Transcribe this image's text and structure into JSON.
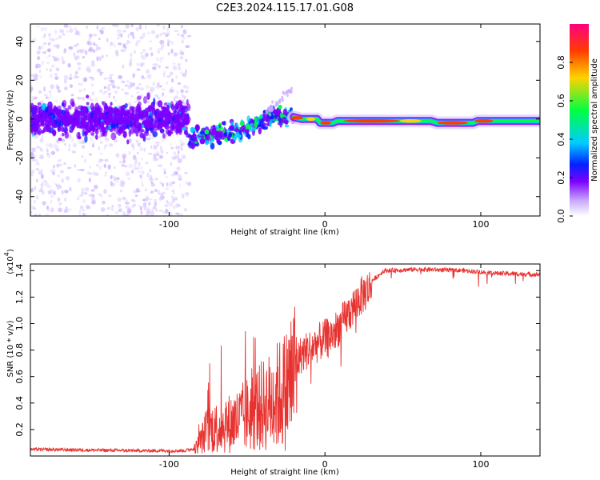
{
  "figure_title": "C2E3.2024.115.17.01.G08",
  "chart_data": [
    {
      "type": "heatmap",
      "name": "spectrogram",
      "title": "",
      "xlabel": "Height of straight line (km)",
      "ylabel": "Frequency (Hz)",
      "xlim": [
        -189,
        138
      ],
      "ylim": [
        -50,
        49
      ],
      "x_ticks": [
        -100,
        0,
        100
      ],
      "y_ticks": [
        -40,
        -20,
        0,
        20,
        40
      ],
      "colorbar": {
        "label": "Normalized spectral amplitude",
        "range": [
          0,
          1
        ],
        "ticks": [
          0.0,
          0.2,
          0.4,
          0.6,
          0.8
        ],
        "colormap": [
          "#ffffff",
          "#c9a8ff",
          "#7c00ff",
          "#0022ff",
          "#00ccff",
          "#00ff40",
          "#ffd200",
          "#ff3c00",
          "#ff0080"
        ]
      },
      "features": {
        "scatter_region_km": [
          -189,
          -87
        ],
        "scatter_center_hz": 0,
        "scatter_spread_hz": 10,
        "noise_extent_hz": [
          -50,
          49
        ],
        "descending_trace": [
          {
            "x": -87,
            "y": -10
          },
          {
            "x": -70,
            "y": -8
          },
          {
            "x": -55,
            "y": -6
          },
          {
            "x": -45,
            "y": -3
          },
          {
            "x": -35,
            "y": 2
          },
          {
            "x": -25,
            "y": 1
          },
          {
            "x": -20,
            "y": 1
          }
        ],
        "carrier_line": [
          {
            "x": -20,
            "y": 1
          },
          {
            "x": -15,
            "y": 0
          },
          {
            "x": -5,
            "y": 0
          },
          {
            "x": -3,
            "y": -2
          },
          {
            "x": 5,
            "y": -2
          },
          {
            "x": 8,
            "y": -1
          },
          {
            "x": 50,
            "y": -1
          },
          {
            "x": 68,
            "y": -1
          },
          {
            "x": 72,
            "y": -2
          },
          {
            "x": 95,
            "y": -2
          },
          {
            "x": 98,
            "y": -1
          },
          {
            "x": 138,
            "y": -1
          }
        ]
      }
    },
    {
      "type": "line",
      "name": "snr",
      "title": "",
      "xlabel": "Height of straight line (km)",
      "ylabel": "SNR (10 * v/v)",
      "multiplier": "(x10",
      "multiplier_exp": "4",
      "multiplier_close": ")",
      "xlim": [
        -189,
        138
      ],
      "ylim": [
        0,
        1.45
      ],
      "x_ticks": [
        -100,
        0,
        100
      ],
      "y_ticks": [
        0.2,
        0.4,
        0.6,
        0.8,
        1.0,
        1.2,
        1.4
      ],
      "color": "#e8322f",
      "series": [
        {
          "name": "SNR",
          "envelope": [
            {
              "x": -189,
              "y": 0.05
            },
            {
              "x": -120,
              "y": 0.04
            },
            {
              "x": -90,
              "y": 0.04
            },
            {
              "x": -83,
              "y": 0.06
            },
            {
              "x": -75,
              "y": 0.22
            },
            {
              "x": -65,
              "y": 0.25
            },
            {
              "x": -55,
              "y": 0.3
            },
            {
              "x": -45,
              "y": 0.38
            },
            {
              "x": -35,
              "y": 0.45
            },
            {
              "x": -25,
              "y": 0.55
            },
            {
              "x": -20,
              "y": 0.7
            },
            {
              "x": -15,
              "y": 0.8
            },
            {
              "x": -5,
              "y": 0.88
            },
            {
              "x": 5,
              "y": 0.95
            },
            {
              "x": 12,
              "y": 1.05
            },
            {
              "x": 22,
              "y": 1.22
            },
            {
              "x": 30,
              "y": 1.32
            },
            {
              "x": 38,
              "y": 1.4
            },
            {
              "x": 60,
              "y": 1.41
            },
            {
              "x": 90,
              "y": 1.4
            },
            {
              "x": 110,
              "y": 1.38
            },
            {
              "x": 138,
              "y": 1.37
            }
          ]
        }
      ]
    }
  ]
}
